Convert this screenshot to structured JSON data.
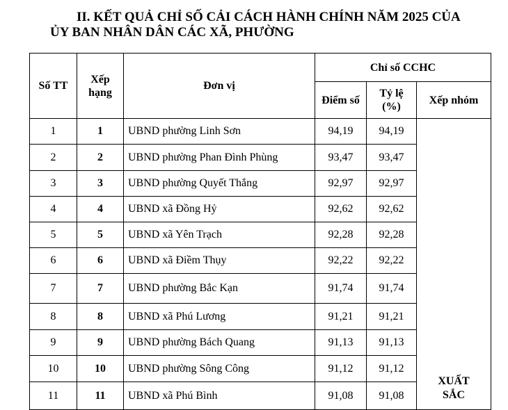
{
  "title": {
    "line1": "II. KẾT QUẢ CHỈ SỐ CẢI CÁCH HÀNH CHÍNH NĂM 2025 CỦA",
    "line2": "ỦY BAN NHÂN DÂN CÁC XÃ, PHƯỜNG"
  },
  "table": {
    "headers": {
      "stt": "Số TT",
      "rank": "Xếp hạng",
      "unit": "Đơn vị",
      "index_group": "Chỉ số CCHC",
      "score": "Điểm số",
      "ratio": "Tỷ lệ (%)",
      "group": "Xếp nhóm"
    },
    "group_value": "XUẤT SẮC",
    "rows": [
      {
        "stt": "1",
        "rank": "1",
        "unit": "UBND phường Linh Sơn",
        "score": "94,19",
        "ratio": "94,19"
      },
      {
        "stt": "2",
        "rank": "2",
        "unit": "UBND phường Phan Đình Phùng",
        "score": "93,47",
        "ratio": "93,47"
      },
      {
        "stt": "3",
        "rank": "3",
        "unit": "UBND phường Quyết Thắng",
        "score": "92,97",
        "ratio": "92,97"
      },
      {
        "stt": "4",
        "rank": "4",
        "unit": "UBND xã Đồng Hỷ",
        "score": "92,62",
        "ratio": "92,62"
      },
      {
        "stt": "5",
        "rank": "5",
        "unit": "UBND xã Yên Trạch",
        "score": "92,28",
        "ratio": "92,28"
      },
      {
        "stt": "6",
        "rank": "6",
        "unit": "UBND xã Điềm Thụy",
        "score": "92,22",
        "ratio": "92,22"
      },
      {
        "stt": "7",
        "rank": "7",
        "unit": "UBND phường Bắc Kạn",
        "score": "91,74",
        "ratio": "91,74"
      },
      {
        "stt": "8",
        "rank": "8",
        "unit": "UBND xã Phú Lương",
        "score": "91,21",
        "ratio": "91,21"
      },
      {
        "stt": "9",
        "rank": "9",
        "unit": "UBND phường Bách Quang",
        "score": "91,13",
        "ratio": "91,13"
      },
      {
        "stt": "10",
        "rank": "10",
        "unit": "UBND phường Sông Công",
        "score": "91,12",
        "ratio": "91,12"
      },
      {
        "stt": "11",
        "rank": "11",
        "unit": "UBND xã Phú Bình",
        "score": "91,08",
        "ratio": "91,08"
      }
    ]
  }
}
